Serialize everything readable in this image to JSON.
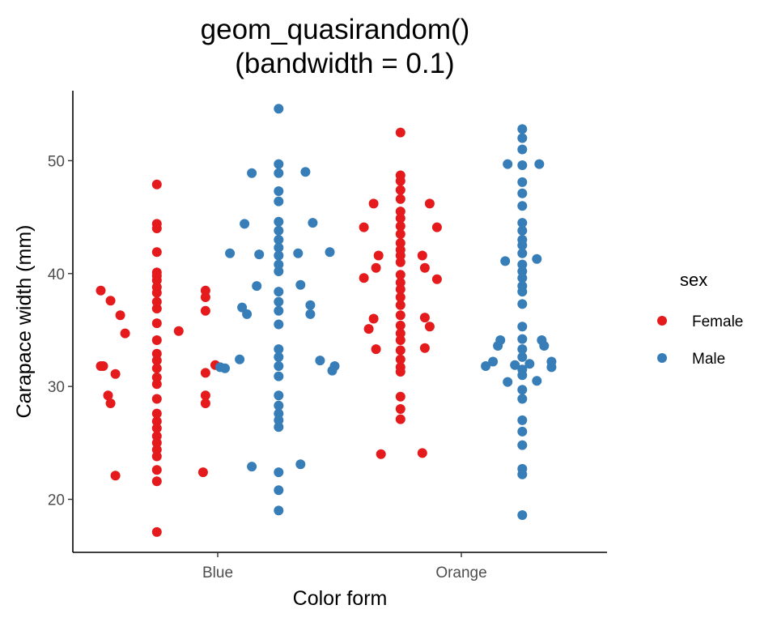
{
  "chart_data": {
    "type": "scatter",
    "title": [
      "geom_quasirandom()",
      "(bandwidth = 0.1)"
    ],
    "xlabel": "Color form",
    "ylabel": "Carapace width (mm)",
    "categories": [
      "Blue",
      "Orange"
    ],
    "ylim": [
      15.3,
      56.2
    ],
    "y_ticks": [
      20,
      30,
      40,
      50
    ],
    "grid": false,
    "legend": {
      "title": "sex",
      "placement": "right"
    },
    "series": [
      {
        "name": "Female",
        "color": "#e41a1c",
        "category_offset": -0.25,
        "points": [
          {
            "c": 0,
            "dx": 0,
            "y": 47.9
          },
          {
            "c": 0,
            "dx": 0,
            "y": 44.4
          },
          {
            "c": 0,
            "dx": 0,
            "y": 44.0
          },
          {
            "c": 0,
            "dx": 0,
            "y": 41.9
          },
          {
            "c": 0,
            "dx": 0,
            "y": 40.1
          },
          {
            "c": 0,
            "dx": 0,
            "y": 39.8
          },
          {
            "c": 0,
            "dx": 0,
            "y": 39.4
          },
          {
            "c": 0,
            "dx": 0,
            "y": 38.8
          },
          {
            "c": 0,
            "dx": 0,
            "y": 38.3
          },
          {
            "c": 0,
            "dx": 0,
            "y": 37.5
          },
          {
            "c": 0,
            "dx": 0,
            "y": 36.9
          },
          {
            "c": 0,
            "dx": 0,
            "y": 35.6
          },
          {
            "c": 0,
            "dx": 0,
            "y": 34.1
          },
          {
            "c": 0,
            "dx": 0,
            "y": 32.9
          },
          {
            "c": 0,
            "dx": 0,
            "y": 32.3
          },
          {
            "c": 0,
            "dx": 0,
            "y": 31.6
          },
          {
            "c": 0,
            "dx": 0,
            "y": 30.8
          },
          {
            "c": 0,
            "dx": 0,
            "y": 30.2
          },
          {
            "c": 0,
            "dx": 0,
            "y": 28.9
          },
          {
            "c": 0,
            "dx": 0,
            "y": 27.6
          },
          {
            "c": 0,
            "dx": 0,
            "y": 26.9
          },
          {
            "c": 0,
            "dx": 0,
            "y": 26.3
          },
          {
            "c": 0,
            "dx": 0,
            "y": 25.6
          },
          {
            "c": 0,
            "dx": 0,
            "y": 25.0
          },
          {
            "c": 0,
            "dx": 0,
            "y": 24.4
          },
          {
            "c": 0,
            "dx": 0,
            "y": 23.8
          },
          {
            "c": 0,
            "dx": 0,
            "y": 22.6
          },
          {
            "c": 0,
            "dx": 0,
            "y": 21.6
          },
          {
            "c": 0,
            "dx": 0,
            "y": 17.1
          },
          {
            "c": 0,
            "dx": -0.23,
            "y": 38.5
          },
          {
            "c": 0,
            "dx": -0.19,
            "y": 37.6
          },
          {
            "c": 0,
            "dx": -0.15,
            "y": 36.3
          },
          {
            "c": 0,
            "dx": -0.13,
            "y": 34.7
          },
          {
            "c": 0,
            "dx": -0.23,
            "y": 31.8
          },
          {
            "c": 0,
            "dx": -0.17,
            "y": 31.1
          },
          {
            "c": 0,
            "dx": -0.22,
            "y": 31.8
          },
          {
            "c": 0,
            "dx": -0.2,
            "y": 29.2
          },
          {
            "c": 0,
            "dx": -0.19,
            "y": 28.5
          },
          {
            "c": 0,
            "dx": -0.17,
            "y": 22.1
          },
          {
            "c": 0,
            "dx": 0.09,
            "y": 34.9
          },
          {
            "c": 0,
            "dx": 0.2,
            "y": 38.5
          },
          {
            "c": 0,
            "dx": 0.2,
            "y": 37.9
          },
          {
            "c": 0,
            "dx": 0.2,
            "y": 36.7
          },
          {
            "c": 0,
            "dx": 0.24,
            "y": 31.9
          },
          {
            "c": 0,
            "dx": 0.2,
            "y": 31.2
          },
          {
            "c": 0,
            "dx": 0.2,
            "y": 29.2
          },
          {
            "c": 0,
            "dx": 0.2,
            "y": 28.5
          },
          {
            "c": 0,
            "dx": 0.19,
            "y": 22.4
          },
          {
            "c": 1,
            "dx": 0,
            "y": 52.5
          },
          {
            "c": 1,
            "dx": 0,
            "y": 48.7
          },
          {
            "c": 1,
            "dx": 0,
            "y": 48.2
          },
          {
            "c": 1,
            "dx": 0,
            "y": 47.4
          },
          {
            "c": 1,
            "dx": 0,
            "y": 46.6
          },
          {
            "c": 1,
            "dx": 0,
            "y": 45.5
          },
          {
            "c": 1,
            "dx": 0,
            "y": 44.9
          },
          {
            "c": 1,
            "dx": 0,
            "y": 44.2
          },
          {
            "c": 1,
            "dx": 0,
            "y": 43.5
          },
          {
            "c": 1,
            "dx": 0,
            "y": 42.7
          },
          {
            "c": 1,
            "dx": 0,
            "y": 42.1
          },
          {
            "c": 1,
            "dx": 0,
            "y": 41.6
          },
          {
            "c": 1,
            "dx": 0,
            "y": 41.0
          },
          {
            "c": 1,
            "dx": 0,
            "y": 39.9
          },
          {
            "c": 1,
            "dx": 0,
            "y": 39.2
          },
          {
            "c": 1,
            "dx": 0,
            "y": 38.6
          },
          {
            "c": 1,
            "dx": 0,
            "y": 37.9
          },
          {
            "c": 1,
            "dx": 0,
            "y": 37.2
          },
          {
            "c": 1,
            "dx": 0,
            "y": 36.3
          },
          {
            "c": 1,
            "dx": 0,
            "y": 35.4
          },
          {
            "c": 1,
            "dx": 0,
            "y": 34.7
          },
          {
            "c": 1,
            "dx": 0,
            "y": 34.1
          },
          {
            "c": 1,
            "dx": 0,
            "y": 33.2
          },
          {
            "c": 1,
            "dx": 0,
            "y": 32.4
          },
          {
            "c": 1,
            "dx": 0,
            "y": 31.7
          },
          {
            "c": 1,
            "dx": 0,
            "y": 31.3
          },
          {
            "c": 1,
            "dx": 0,
            "y": 29.1
          },
          {
            "c": 1,
            "dx": 0,
            "y": 28.0
          },
          {
            "c": 1,
            "dx": 0,
            "y": 27.1
          },
          {
            "c": 1,
            "dx": -0.11,
            "y": 46.2
          },
          {
            "c": 1,
            "dx": -0.15,
            "y": 44.1
          },
          {
            "c": 1,
            "dx": -0.09,
            "y": 41.6
          },
          {
            "c": 1,
            "dx": -0.1,
            "y": 40.5
          },
          {
            "c": 1,
            "dx": -0.15,
            "y": 39.6
          },
          {
            "c": 1,
            "dx": -0.11,
            "y": 36.0
          },
          {
            "c": 1,
            "dx": -0.13,
            "y": 35.1
          },
          {
            "c": 1,
            "dx": -0.1,
            "y": 33.3
          },
          {
            "c": 1,
            "dx": -0.08,
            "y": 24.0
          },
          {
            "c": 1,
            "dx": 0.12,
            "y": 46.2
          },
          {
            "c": 1,
            "dx": 0.15,
            "y": 44.1
          },
          {
            "c": 1,
            "dx": 0.09,
            "y": 41.6
          },
          {
            "c": 1,
            "dx": 0.1,
            "y": 40.5
          },
          {
            "c": 1,
            "dx": 0.15,
            "y": 39.5
          },
          {
            "c": 1,
            "dx": 0.1,
            "y": 36.1
          },
          {
            "c": 1,
            "dx": 0.12,
            "y": 35.3
          },
          {
            "c": 1,
            "dx": 0.1,
            "y": 33.4
          },
          {
            "c": 1,
            "dx": 0.09,
            "y": 24.1
          }
        ]
      },
      {
        "name": "Male",
        "color": "#377eb8",
        "category_offset": 0.25,
        "points": [
          {
            "c": 0,
            "dx": 0,
            "y": 54.6
          },
          {
            "c": 0,
            "dx": 0,
            "y": 49.7
          },
          {
            "c": 0,
            "dx": 0,
            "y": 48.9
          },
          {
            "c": 0,
            "dx": 0,
            "y": 47.3
          },
          {
            "c": 0,
            "dx": 0,
            "y": 46.4
          },
          {
            "c": 0,
            "dx": 0,
            "y": 44.6
          },
          {
            "c": 0,
            "dx": 0,
            "y": 43.8
          },
          {
            "c": 0,
            "dx": 0,
            "y": 43.0
          },
          {
            "c": 0,
            "dx": 0,
            "y": 42.3
          },
          {
            "c": 0,
            "dx": 0,
            "y": 41.6
          },
          {
            "c": 0,
            "dx": 0,
            "y": 40.8
          },
          {
            "c": 0,
            "dx": 0,
            "y": 40.2
          },
          {
            "c": 0,
            "dx": 0,
            "y": 38.4
          },
          {
            "c": 0,
            "dx": 0,
            "y": 37.5
          },
          {
            "c": 0,
            "dx": 0,
            "y": 36.7
          },
          {
            "c": 0,
            "dx": 0,
            "y": 35.5
          },
          {
            "c": 0,
            "dx": 0,
            "y": 33.3
          },
          {
            "c": 0,
            "dx": 0,
            "y": 32.6
          },
          {
            "c": 0,
            "dx": 0,
            "y": 31.8
          },
          {
            "c": 0,
            "dx": 0,
            "y": 30.9
          },
          {
            "c": 0,
            "dx": 0,
            "y": 29.2
          },
          {
            "c": 0,
            "dx": 0,
            "y": 28.3
          },
          {
            "c": 0,
            "dx": 0,
            "y": 27.6
          },
          {
            "c": 0,
            "dx": 0,
            "y": 27.0
          },
          {
            "c": 0,
            "dx": 0,
            "y": 26.4
          },
          {
            "c": 0,
            "dx": 0,
            "y": 22.4
          },
          {
            "c": 0,
            "dx": 0,
            "y": 20.8
          },
          {
            "c": 0,
            "dx": 0,
            "y": 19.0
          },
          {
            "c": 0,
            "dx": -0.2,
            "y": 41.8
          },
          {
            "c": 0,
            "dx": -0.14,
            "y": 44.4
          },
          {
            "c": 0,
            "dx": -0.11,
            "y": 48.9
          },
          {
            "c": 0,
            "dx": -0.08,
            "y": 41.7
          },
          {
            "c": 0,
            "dx": -0.09,
            "y": 38.9
          },
          {
            "c": 0,
            "dx": -0.15,
            "y": 37.0
          },
          {
            "c": 0,
            "dx": -0.13,
            "y": 36.4
          },
          {
            "c": 0,
            "dx": -0.16,
            "y": 32.4
          },
          {
            "c": 0,
            "dx": -0.24,
            "y": 31.7
          },
          {
            "c": 0,
            "dx": -0.22,
            "y": 31.6
          },
          {
            "c": 0,
            "dx": -0.11,
            "y": 22.9
          },
          {
            "c": 0,
            "dx": 0.11,
            "y": 49.0
          },
          {
            "c": 0,
            "dx": 0.14,
            "y": 44.5
          },
          {
            "c": 0,
            "dx": 0.21,
            "y": 41.9
          },
          {
            "c": 0,
            "dx": 0.08,
            "y": 41.8
          },
          {
            "c": 0,
            "dx": 0.09,
            "y": 39.0
          },
          {
            "c": 0,
            "dx": 0.13,
            "y": 37.2
          },
          {
            "c": 0,
            "dx": 0.13,
            "y": 36.4
          },
          {
            "c": 0,
            "dx": 0.17,
            "y": 32.3
          },
          {
            "c": 0,
            "dx": 0.22,
            "y": 31.4
          },
          {
            "c": 0,
            "dx": 0.23,
            "y": 31.8
          },
          {
            "c": 0,
            "dx": 0.09,
            "y": 23.1
          },
          {
            "c": 1,
            "dx": 0,
            "y": 52.8
          },
          {
            "c": 1,
            "dx": 0,
            "y": 52.0
          },
          {
            "c": 1,
            "dx": 0,
            "y": 51.0
          },
          {
            "c": 1,
            "dx": 0,
            "y": 49.6
          },
          {
            "c": 1,
            "dx": 0,
            "y": 48.1
          },
          {
            "c": 1,
            "dx": 0,
            "y": 47.1
          },
          {
            "c": 1,
            "dx": 0,
            "y": 46.0
          },
          {
            "c": 1,
            "dx": 0,
            "y": 44.5
          },
          {
            "c": 1,
            "dx": 0,
            "y": 43.8
          },
          {
            "c": 1,
            "dx": 0,
            "y": 43.0
          },
          {
            "c": 1,
            "dx": 0,
            "y": 42.5
          },
          {
            "c": 1,
            "dx": 0,
            "y": 41.8
          },
          {
            "c": 1,
            "dx": 0,
            "y": 40.8
          },
          {
            "c": 1,
            "dx": 0,
            "y": 40.2
          },
          {
            "c": 1,
            "dx": 0,
            "y": 39.6
          },
          {
            "c": 1,
            "dx": 0,
            "y": 38.9
          },
          {
            "c": 1,
            "dx": 0,
            "y": 38.4
          },
          {
            "c": 1,
            "dx": 0,
            "y": 37.3
          },
          {
            "c": 1,
            "dx": 0,
            "y": 35.3
          },
          {
            "c": 1,
            "dx": 0,
            "y": 34.2
          },
          {
            "c": 1,
            "dx": 0,
            "y": 33.3
          },
          {
            "c": 1,
            "dx": 0,
            "y": 32.6
          },
          {
            "c": 1,
            "dx": 0,
            "y": 31.5
          },
          {
            "c": 1,
            "dx": 0,
            "y": 31.0
          },
          {
            "c": 1,
            "dx": 0,
            "y": 29.7
          },
          {
            "c": 1,
            "dx": 0,
            "y": 28.9
          },
          {
            "c": 1,
            "dx": 0,
            "y": 27.0
          },
          {
            "c": 1,
            "dx": 0,
            "y": 26.0
          },
          {
            "c": 1,
            "dx": 0,
            "y": 24.8
          },
          {
            "c": 1,
            "dx": 0,
            "y": 22.7
          },
          {
            "c": 1,
            "dx": 0,
            "y": 22.2
          },
          {
            "c": 1,
            "dx": 0,
            "y": 18.6
          },
          {
            "c": 1,
            "dx": -0.06,
            "y": 49.7
          },
          {
            "c": 1,
            "dx": -0.07,
            "y": 41.1
          },
          {
            "c": 1,
            "dx": -0.09,
            "y": 34.1
          },
          {
            "c": 1,
            "dx": -0.1,
            "y": 33.6
          },
          {
            "c": 1,
            "dx": -0.12,
            "y": 32.2
          },
          {
            "c": 1,
            "dx": -0.15,
            "y": 31.8
          },
          {
            "c": 1,
            "dx": -0.03,
            "y": 31.9
          },
          {
            "c": 1,
            "dx": -0.06,
            "y": 30.4
          },
          {
            "c": 1,
            "dx": 0.07,
            "y": 49.7
          },
          {
            "c": 1,
            "dx": 0.06,
            "y": 41.3
          },
          {
            "c": 1,
            "dx": 0.08,
            "y": 34.1
          },
          {
            "c": 1,
            "dx": 0.09,
            "y": 33.6
          },
          {
            "c": 1,
            "dx": 0.12,
            "y": 32.2
          },
          {
            "c": 1,
            "dx": 0.12,
            "y": 31.7
          },
          {
            "c": 1,
            "dx": 0.03,
            "y": 32.0
          },
          {
            "c": 1,
            "dx": 0.06,
            "y": 30.5
          }
        ]
      }
    ]
  }
}
